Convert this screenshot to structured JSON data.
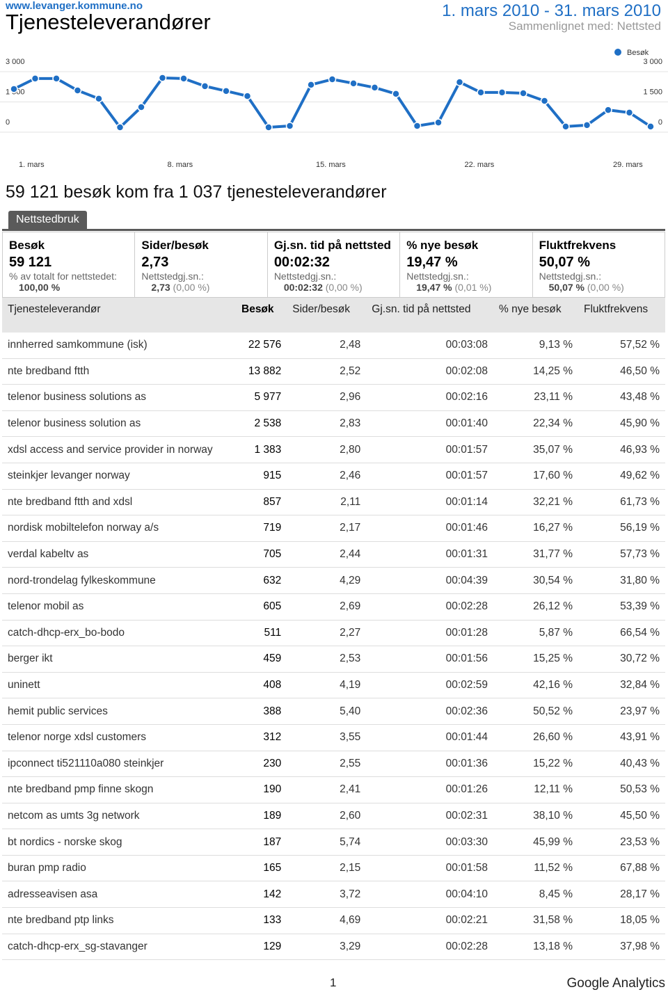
{
  "header": {
    "site": "www.levanger.kommune.no",
    "title": "Tjenesteleverandører",
    "date_range": "1. mars 2010 - 31. mars 2010",
    "comparison": "Sammenlignet med: Nettsted"
  },
  "chart_data": {
    "type": "line",
    "x": [
      "1. mars",
      null,
      null,
      null,
      null,
      null,
      null,
      "8. mars",
      null,
      null,
      null,
      null,
      null,
      null,
      "15. mars",
      null,
      null,
      null,
      null,
      null,
      null,
      "22. mars",
      null,
      null,
      null,
      null,
      null,
      null,
      "29. mars",
      null,
      null
    ],
    "series": [
      {
        "name": "Besøk",
        "color": "#1f6fc5",
        "values": [
          2140,
          2660,
          2660,
          2070,
          1660,
          240,
          1240,
          2690,
          2660,
          2280,
          2040,
          1790,
          240,
          310,
          2350,
          2620,
          2420,
          2210,
          1900,
          310,
          480,
          2480,
          1970,
          1970,
          1930,
          1550,
          280,
          350,
          1100,
          970,
          280
        ]
      }
    ],
    "ylim": [
      0,
      3000
    ],
    "yticks": [
      0,
      {
        "value": 1500,
        "label": "1 500"
      },
      {
        "value": 3000,
        "label": "3 000"
      }
    ],
    "y2lim": [
      0,
      3000
    ],
    "y2ticks": [
      0,
      {
        "value": 1500,
        "label": "1 500"
      },
      {
        "value": 3000,
        "label": "3 000"
      }
    ],
    "grid": true
  },
  "section_title": "59 121 besøk kom fra 1 037 tjenesteleverandører",
  "tab": "Nettstedbruk",
  "summary": [
    {
      "label": "Besøk",
      "value": "59 121",
      "note": "% av totalt for nettstedet:",
      "site_avg": "100,00 %"
    },
    {
      "label": "Sider/besøk",
      "value": "2,73",
      "note": "Nettstedgj.sn.:",
      "site_avg": "2,73",
      "change": "(0,00 %)"
    },
    {
      "label": "Gj.sn. tid på nettsted",
      "value": "00:02:32",
      "note": "Nettstedgj.sn.:",
      "site_avg": "00:02:32",
      "change": "(0,00 %)"
    },
    {
      "label": "% nye besøk",
      "value": "19,47 %",
      "note": "Nettstedgj.sn.:",
      "site_avg": "19,47 %",
      "change": "(0,01 %)"
    },
    {
      "label": "Fluktfrekvens",
      "value": "50,07 %",
      "note": "Nettstedgj.sn.:",
      "site_avg": "50,07 %",
      "change": "(0,00 %)"
    }
  ],
  "table": {
    "headers": [
      "Tjenesteleverandør",
      "Besøk",
      "Sider/besøk",
      "Gj.sn. tid på nettsted",
      "% nye besøk",
      "Fluktfrekvens"
    ],
    "rows": [
      [
        "innherred samkommune (isk)",
        "22 576",
        "2,48",
        "00:03:08",
        "9,13 %",
        "57,52 %"
      ],
      [
        "nte bredband ftth",
        "13 882",
        "2,52",
        "00:02:08",
        "14,25 %",
        "46,50 %"
      ],
      [
        "telenor business solutions as",
        "5 977",
        "2,96",
        "00:02:16",
        "23,11 %",
        "43,48 %"
      ],
      [
        "telenor business solution as",
        "2 538",
        "2,83",
        "00:01:40",
        "22,34 %",
        "45,90 %"
      ],
      [
        "xdsl access and service provider in norway",
        "1 383",
        "2,80",
        "00:01:57",
        "35,07 %",
        "46,93 %"
      ],
      [
        "steinkjer levanger norway",
        "915",
        "2,46",
        "00:01:57",
        "17,60 %",
        "49,62 %"
      ],
      [
        "nte bredband ftth and xdsl",
        "857",
        "2,11",
        "00:01:14",
        "32,21 %",
        "61,73 %"
      ],
      [
        "nordisk mobiltelefon norway a/s",
        "719",
        "2,17",
        "00:01:46",
        "16,27 %",
        "56,19 %"
      ],
      [
        "verdal kabeltv as",
        "705",
        "2,44",
        "00:01:31",
        "31,77 %",
        "57,73 %"
      ],
      [
        "nord-trondelag fylkeskommune",
        "632",
        "4,29",
        "00:04:39",
        "30,54 %",
        "31,80 %"
      ],
      [
        "telenor mobil as",
        "605",
        "2,69",
        "00:02:28",
        "26,12 %",
        "53,39 %"
      ],
      [
        "catch-dhcp-erx_bo-bodo",
        "511",
        "2,27",
        "00:01:28",
        "5,87 %",
        "66,54 %"
      ],
      [
        "berger ikt",
        "459",
        "2,53",
        "00:01:56",
        "15,25 %",
        "30,72 %"
      ],
      [
        "uninett",
        "408",
        "4,19",
        "00:02:59",
        "42,16 %",
        "32,84 %"
      ],
      [
        "hemit public services",
        "388",
        "5,40",
        "00:02:36",
        "50,52 %",
        "23,97 %"
      ],
      [
        "telenor norge xdsl customers",
        "312",
        "3,55",
        "00:01:44",
        "26,60 %",
        "43,91 %"
      ],
      [
        "ipconnect ti521110a080 steinkjer",
        "230",
        "2,55",
        "00:01:36",
        "15,22 %",
        "40,43 %"
      ],
      [
        "nte bredband pmp finne skogn",
        "190",
        "2,41",
        "00:01:26",
        "12,11 %",
        "50,53 %"
      ],
      [
        "netcom as umts 3g network",
        "189",
        "2,60",
        "00:02:31",
        "38,10 %",
        "45,50 %"
      ],
      [
        "bt nordics - norske skog",
        "187",
        "5,74",
        "00:03:30",
        "45,99 %",
        "23,53 %"
      ],
      [
        "buran pmp radio",
        "165",
        "2,15",
        "00:01:58",
        "11,52 %",
        "67,88 %"
      ],
      [
        "adresseavisen asa",
        "142",
        "3,72",
        "00:04:10",
        "8,45 %",
        "28,17 %"
      ],
      [
        "nte bredband ptp links",
        "133",
        "4,69",
        "00:02:21",
        "31,58 %",
        "18,05 %"
      ],
      [
        "catch-dhcp-erx_sg-stavanger",
        "129",
        "3,29",
        "00:02:28",
        "13,18 %",
        "37,98 %"
      ]
    ]
  },
  "footer": {
    "page": "1",
    "brand": "Google Analytics"
  }
}
